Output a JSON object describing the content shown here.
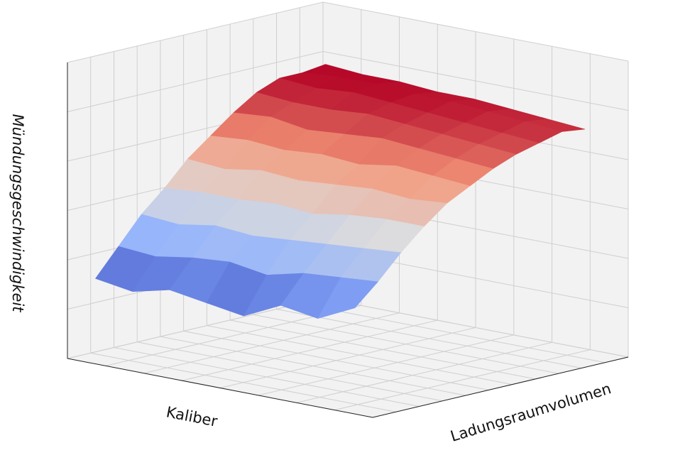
{
  "chart_data": {
    "type": "surface",
    "xlabel": "Kaliber",
    "ylabel": "Ladungsraumvolumen",
    "zlabel": "Mündungsgeschwindigkeit",
    "colormap": "coolwarm",
    "grid": true,
    "values": [
      [
        27,
        36,
        45,
        52,
        60,
        66,
        72,
        77,
        80,
        80,
        81
      ],
      [
        25,
        35,
        44,
        53,
        59,
        67,
        73,
        76,
        79,
        81,
        80
      ],
      [
        28,
        37,
        46,
        53,
        61,
        66,
        71,
        76,
        80,
        81,
        80
      ],
      [
        26,
        38,
        45,
        54,
        60,
        67,
        72,
        77,
        79,
        80,
        79
      ],
      [
        24,
        36,
        46,
        53,
        61,
        66,
        73,
        76,
        78,
        80,
        79
      ],
      [
        30,
        39,
        47,
        55,
        62,
        68,
        72,
        75,
        77,
        79,
        78
      ],
      [
        28,
        40,
        48,
        56,
        61,
        67,
        71,
        74,
        76,
        78,
        77
      ],
      [
        34,
        41,
        49,
        56,
        62,
        66,
        70,
        73,
        75,
        77,
        76
      ]
    ]
  }
}
